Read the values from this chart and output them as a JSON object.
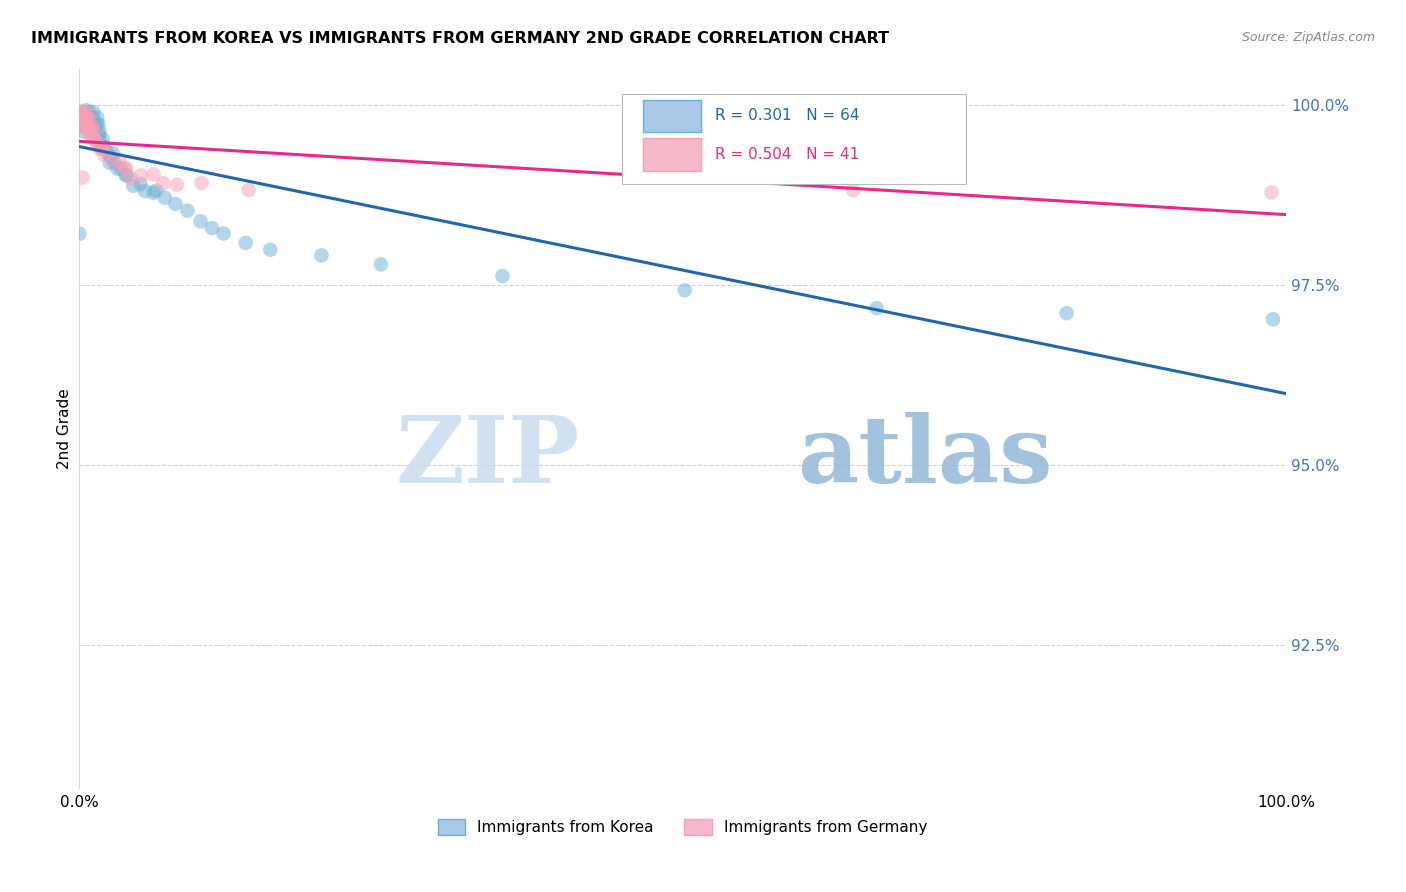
{
  "title": "IMMIGRANTS FROM KOREA VS IMMIGRANTS FROM GERMANY 2ND GRADE CORRELATION CHART",
  "source": "Source: ZipAtlas.com",
  "ylabel": "2nd Grade",
  "korea_color": "#6baed6",
  "germany_color": "#fa9fb5",
  "korea_line_color": "#2166ac",
  "germany_line_color": "#e7298a",
  "korea_R": 0.301,
  "korea_N": 64,
  "germany_R": 0.504,
  "germany_N": 41,
  "legend_label_korea": "Immigrants from Korea",
  "legend_label_germany": "Immigrants from Germany",
  "watermark_zip": "ZIP",
  "watermark_atlas": "atlas",
  "xlim": [
    0.0,
    1.0
  ],
  "ylim": [
    0.905,
    1.005
  ],
  "yticks": [
    0.925,
    0.95,
    0.975,
    1.0
  ],
  "ytick_labels": [
    "92.5%",
    "95.0%",
    "97.5%",
    "100.0%"
  ],
  "korea_x": [
    0.002,
    0.003,
    0.003,
    0.003,
    0.004,
    0.004,
    0.004,
    0.005,
    0.005,
    0.006,
    0.006,
    0.007,
    0.007,
    0.007,
    0.008,
    0.008,
    0.009,
    0.009,
    0.01,
    0.01,
    0.011,
    0.011,
    0.012,
    0.012,
    0.013,
    0.014,
    0.015,
    0.015,
    0.016,
    0.017,
    0.018,
    0.019,
    0.02,
    0.021,
    0.022,
    0.023,
    0.025,
    0.026,
    0.028,
    0.03,
    0.032,
    0.035,
    0.038,
    0.04,
    0.045,
    0.05,
    0.055,
    0.06,
    0.065,
    0.07,
    0.08,
    0.09,
    0.1,
    0.11,
    0.12,
    0.14,
    0.16,
    0.2,
    0.25,
    0.35,
    0.5,
    0.66,
    0.82,
    0.99
  ],
  "korea_y": [
    0.982,
    0.999,
    0.998,
    0.996,
    0.999,
    0.998,
    0.997,
    0.999,
    0.998,
    0.998,
    0.997,
    0.999,
    0.998,
    0.997,
    0.998,
    0.997,
    0.998,
    0.997,
    0.999,
    0.997,
    0.998,
    0.997,
    0.997,
    0.996,
    0.997,
    0.996,
    0.998,
    0.997,
    0.996,
    0.996,
    0.995,
    0.994,
    0.995,
    0.994,
    0.994,
    0.993,
    0.993,
    0.992,
    0.993,
    0.992,
    0.991,
    0.991,
    0.99,
    0.99,
    0.989,
    0.989,
    0.988,
    0.988,
    0.988,
    0.987,
    0.986,
    0.985,
    0.984,
    0.983,
    0.982,
    0.981,
    0.98,
    0.979,
    0.978,
    0.976,
    0.974,
    0.972,
    0.971,
    0.97
  ],
  "germany_x": [
    0.001,
    0.002,
    0.003,
    0.003,
    0.003,
    0.004,
    0.004,
    0.005,
    0.005,
    0.006,
    0.006,
    0.007,
    0.007,
    0.008,
    0.008,
    0.009,
    0.01,
    0.011,
    0.012,
    0.013,
    0.014,
    0.015,
    0.016,
    0.017,
    0.018,
    0.02,
    0.022,
    0.025,
    0.028,
    0.032,
    0.036,
    0.04,
    0.045,
    0.05,
    0.06,
    0.07,
    0.08,
    0.1,
    0.14,
    0.64,
    0.99
  ],
  "germany_y": [
    0.99,
    0.999,
    0.999,
    0.998,
    0.997,
    0.999,
    0.998,
    0.999,
    0.998,
    0.998,
    0.997,
    0.998,
    0.997,
    0.998,
    0.997,
    0.997,
    0.997,
    0.996,
    0.996,
    0.996,
    0.995,
    0.995,
    0.995,
    0.994,
    0.994,
    0.994,
    0.993,
    0.993,
    0.992,
    0.992,
    0.991,
    0.991,
    0.99,
    0.99,
    0.99,
    0.989,
    0.989,
    0.989,
    0.988,
    0.988,
    0.988
  ]
}
